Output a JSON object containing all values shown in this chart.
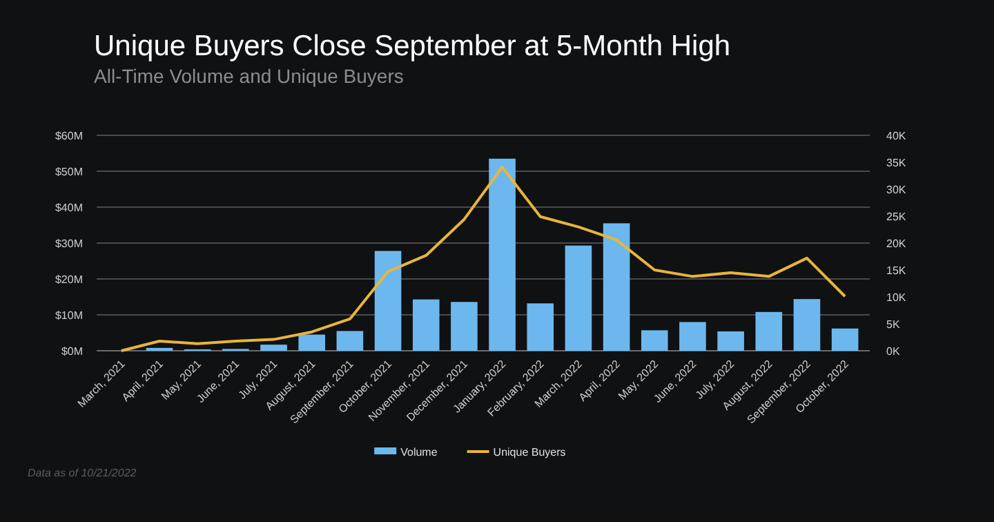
{
  "chart_data": {
    "type": "bar",
    "title": "Unique Buyers Close September  at 5-Month High",
    "subtitle": "All-Time Volume and Unique Buyers",
    "categories": [
      "March, 2021",
      "April, 2021",
      "May, 2021",
      "June, 2021",
      "July, 2021",
      "August, 2021",
      "September, 2021",
      "October, 2021",
      "November, 2021",
      "December, 2021",
      "January, 2022",
      "February, 2022",
      "March, 2022",
      "April, 2022",
      "May, 2022",
      "June, 2022",
      "July, 2022",
      "August, 2022",
      "September, 2022",
      "October, 2022"
    ],
    "series": [
      {
        "name": "Volume",
        "color": "#6cb8ee",
        "values": [
          0,
          0.8,
          0.4,
          0.5,
          1.7,
          4.5,
          5.5,
          27.8,
          14.3,
          13.6,
          53.5,
          13.2,
          29.3,
          35.5,
          5.7,
          8,
          5.4,
          10.8,
          14.4,
          6.2
        ]
      },
      {
        "name": "Unique Buyers",
        "type": "line",
        "axis": "y2",
        "color": "#e8b53c",
        "values": [
          0,
          1.8,
          1.3,
          1.8,
          2.1,
          3.5,
          5.9,
          14.7,
          17.7,
          24.4,
          34.1,
          24.9,
          23,
          20.6,
          15,
          13.8,
          14.5,
          13.8,
          17.2,
          10.1
        ]
      }
    ],
    "ylim": [
      0,
      60
    ],
    "yticks": [
      {
        "value": 0,
        "label": "$0M"
      },
      {
        "value": 10,
        "label": "$10M"
      },
      {
        "value": 20,
        "label": "$20M"
      },
      {
        "value": 30,
        "label": "$30M"
      },
      {
        "value": 40,
        "label": "$40M"
      },
      {
        "value": 50,
        "label": "$50M"
      },
      {
        "value": 60,
        "label": "$60M"
      }
    ],
    "y2lim": [
      0,
      40
    ],
    "y2ticks": [
      {
        "value": 0,
        "label": "0K"
      },
      {
        "value": 5,
        "label": "5K"
      },
      {
        "value": 10,
        "label": "10K"
      },
      {
        "value": 15,
        "label": "15K"
      },
      {
        "value": 20,
        "label": "20K"
      },
      {
        "value": 25,
        "label": "25K"
      },
      {
        "value": 30,
        "label": "30K"
      },
      {
        "value": 35,
        "label": "35K"
      },
      {
        "value": 40,
        "label": "40K"
      }
    ],
    "grid": "y",
    "legend": "bottom",
    "marker": "none",
    "line_style": "solid",
    "annotations": [
      "Data as of 10/21/2022"
    ]
  }
}
